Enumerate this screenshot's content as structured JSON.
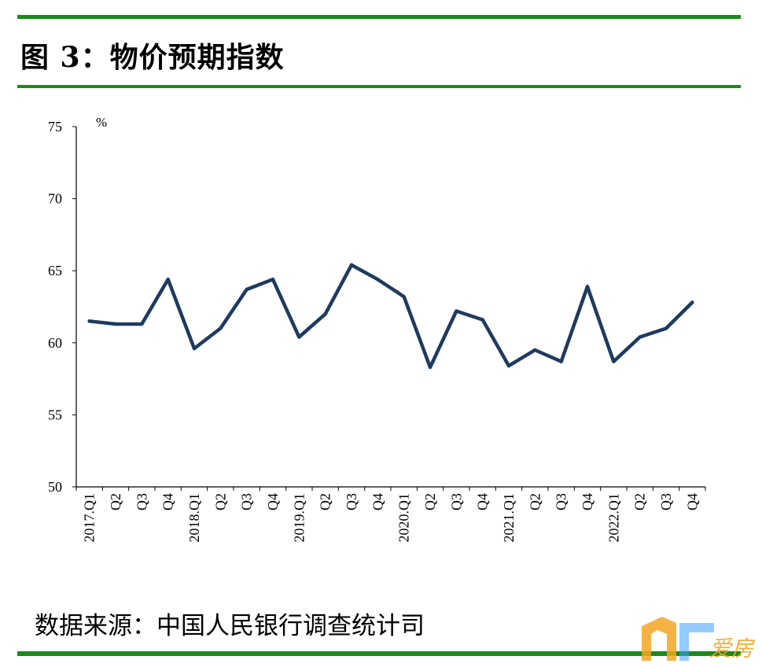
{
  "title": "图 3：物价预期指数",
  "source": "数据来源：中国人民银行调查统计司",
  "watermark": {
    "text": "爱房",
    "color": "#f5a623"
  },
  "colors": {
    "rule": "#1a8a1a",
    "line": "#1f3a5f",
    "axis": "#000000"
  },
  "chart_data": {
    "type": "line",
    "title": "",
    "xlabel": "",
    "ylabel": "",
    "unit": "%",
    "ylim": [
      50,
      75
    ],
    "yticks": [
      50,
      55,
      60,
      65,
      70,
      75
    ],
    "grid": false,
    "x": [
      "2017.Q1",
      "Q2",
      "Q3",
      "Q4",
      "2018.Q1",
      "Q2",
      "Q3",
      "Q4",
      "2019.Q1",
      "Q2",
      "Q3",
      "Q4",
      "2020.Q1",
      "Q2",
      "Q3",
      "Q4",
      "2021.Q1",
      "Q2",
      "Q3",
      "Q4",
      "2022.Q1",
      "Q2",
      "Q3",
      "Q4"
    ],
    "series": [
      {
        "values": [
          61.5,
          61.3,
          61.3,
          64.4,
          59.6,
          61.0,
          63.7,
          64.4,
          60.4,
          62.0,
          65.4,
          64.4,
          63.2,
          58.3,
          62.2,
          61.6,
          58.4,
          59.5,
          58.7,
          63.9,
          58.7,
          60.4,
          61.0,
          62.8
        ]
      }
    ]
  }
}
